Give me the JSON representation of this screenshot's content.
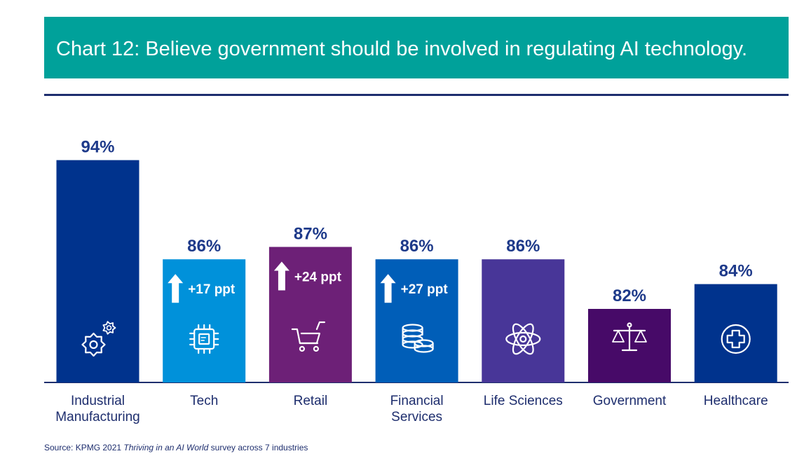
{
  "title": "Chart 12: Believe government should be involved in regulating AI technology.",
  "source": {
    "prefix": "Source: KPMG 2021 ",
    "italic": "Thriving in an AI World",
    "suffix": " survey across 7 industries"
  },
  "colors": {
    "banner": "#00a19a",
    "rule": "#1e2e6e",
    "value_label": "#1e3a8a",
    "category_label": "#1e2e6e"
  },
  "chart_data": {
    "type": "bar",
    "title": "Chart 12: Believe government should be involved in regulating AI technology.",
    "categories": [
      "Industrial Manufacturing",
      "Tech",
      "Retail",
      "Financial Services",
      "Life Sciences",
      "Government",
      "Healthcare"
    ],
    "category_lines": [
      [
        "Industrial",
        "Manufacturing"
      ],
      [
        "Tech"
      ],
      [
        "Retail"
      ],
      [
        "Financial",
        "Services"
      ],
      [
        "Life Sciences"
      ],
      [
        "Government"
      ],
      [
        "Healthcare"
      ]
    ],
    "values": [
      94,
      86,
      87,
      86,
      86,
      82,
      84
    ],
    "value_labels": [
      "94%",
      "86%",
      "87%",
      "86%",
      "86%",
      "82%",
      "84%"
    ],
    "bar_colors": [
      "#00338d",
      "#0091da",
      "#6d2077",
      "#005eb8",
      "#483698",
      "#470a68",
      "#00338d"
    ],
    "changes": [
      "",
      "+17 ppt",
      "+24 ppt",
      "+27 ppt",
      "",
      "",
      ""
    ],
    "icons": [
      "gears-icon",
      "chip-icon",
      "cart-icon",
      "coins-icon",
      "atom-icon",
      "scales-icon",
      "medical-cross-icon"
    ],
    "ylim": [
      0,
      100
    ],
    "grid": false,
    "xlabel": "",
    "ylabel": ""
  }
}
